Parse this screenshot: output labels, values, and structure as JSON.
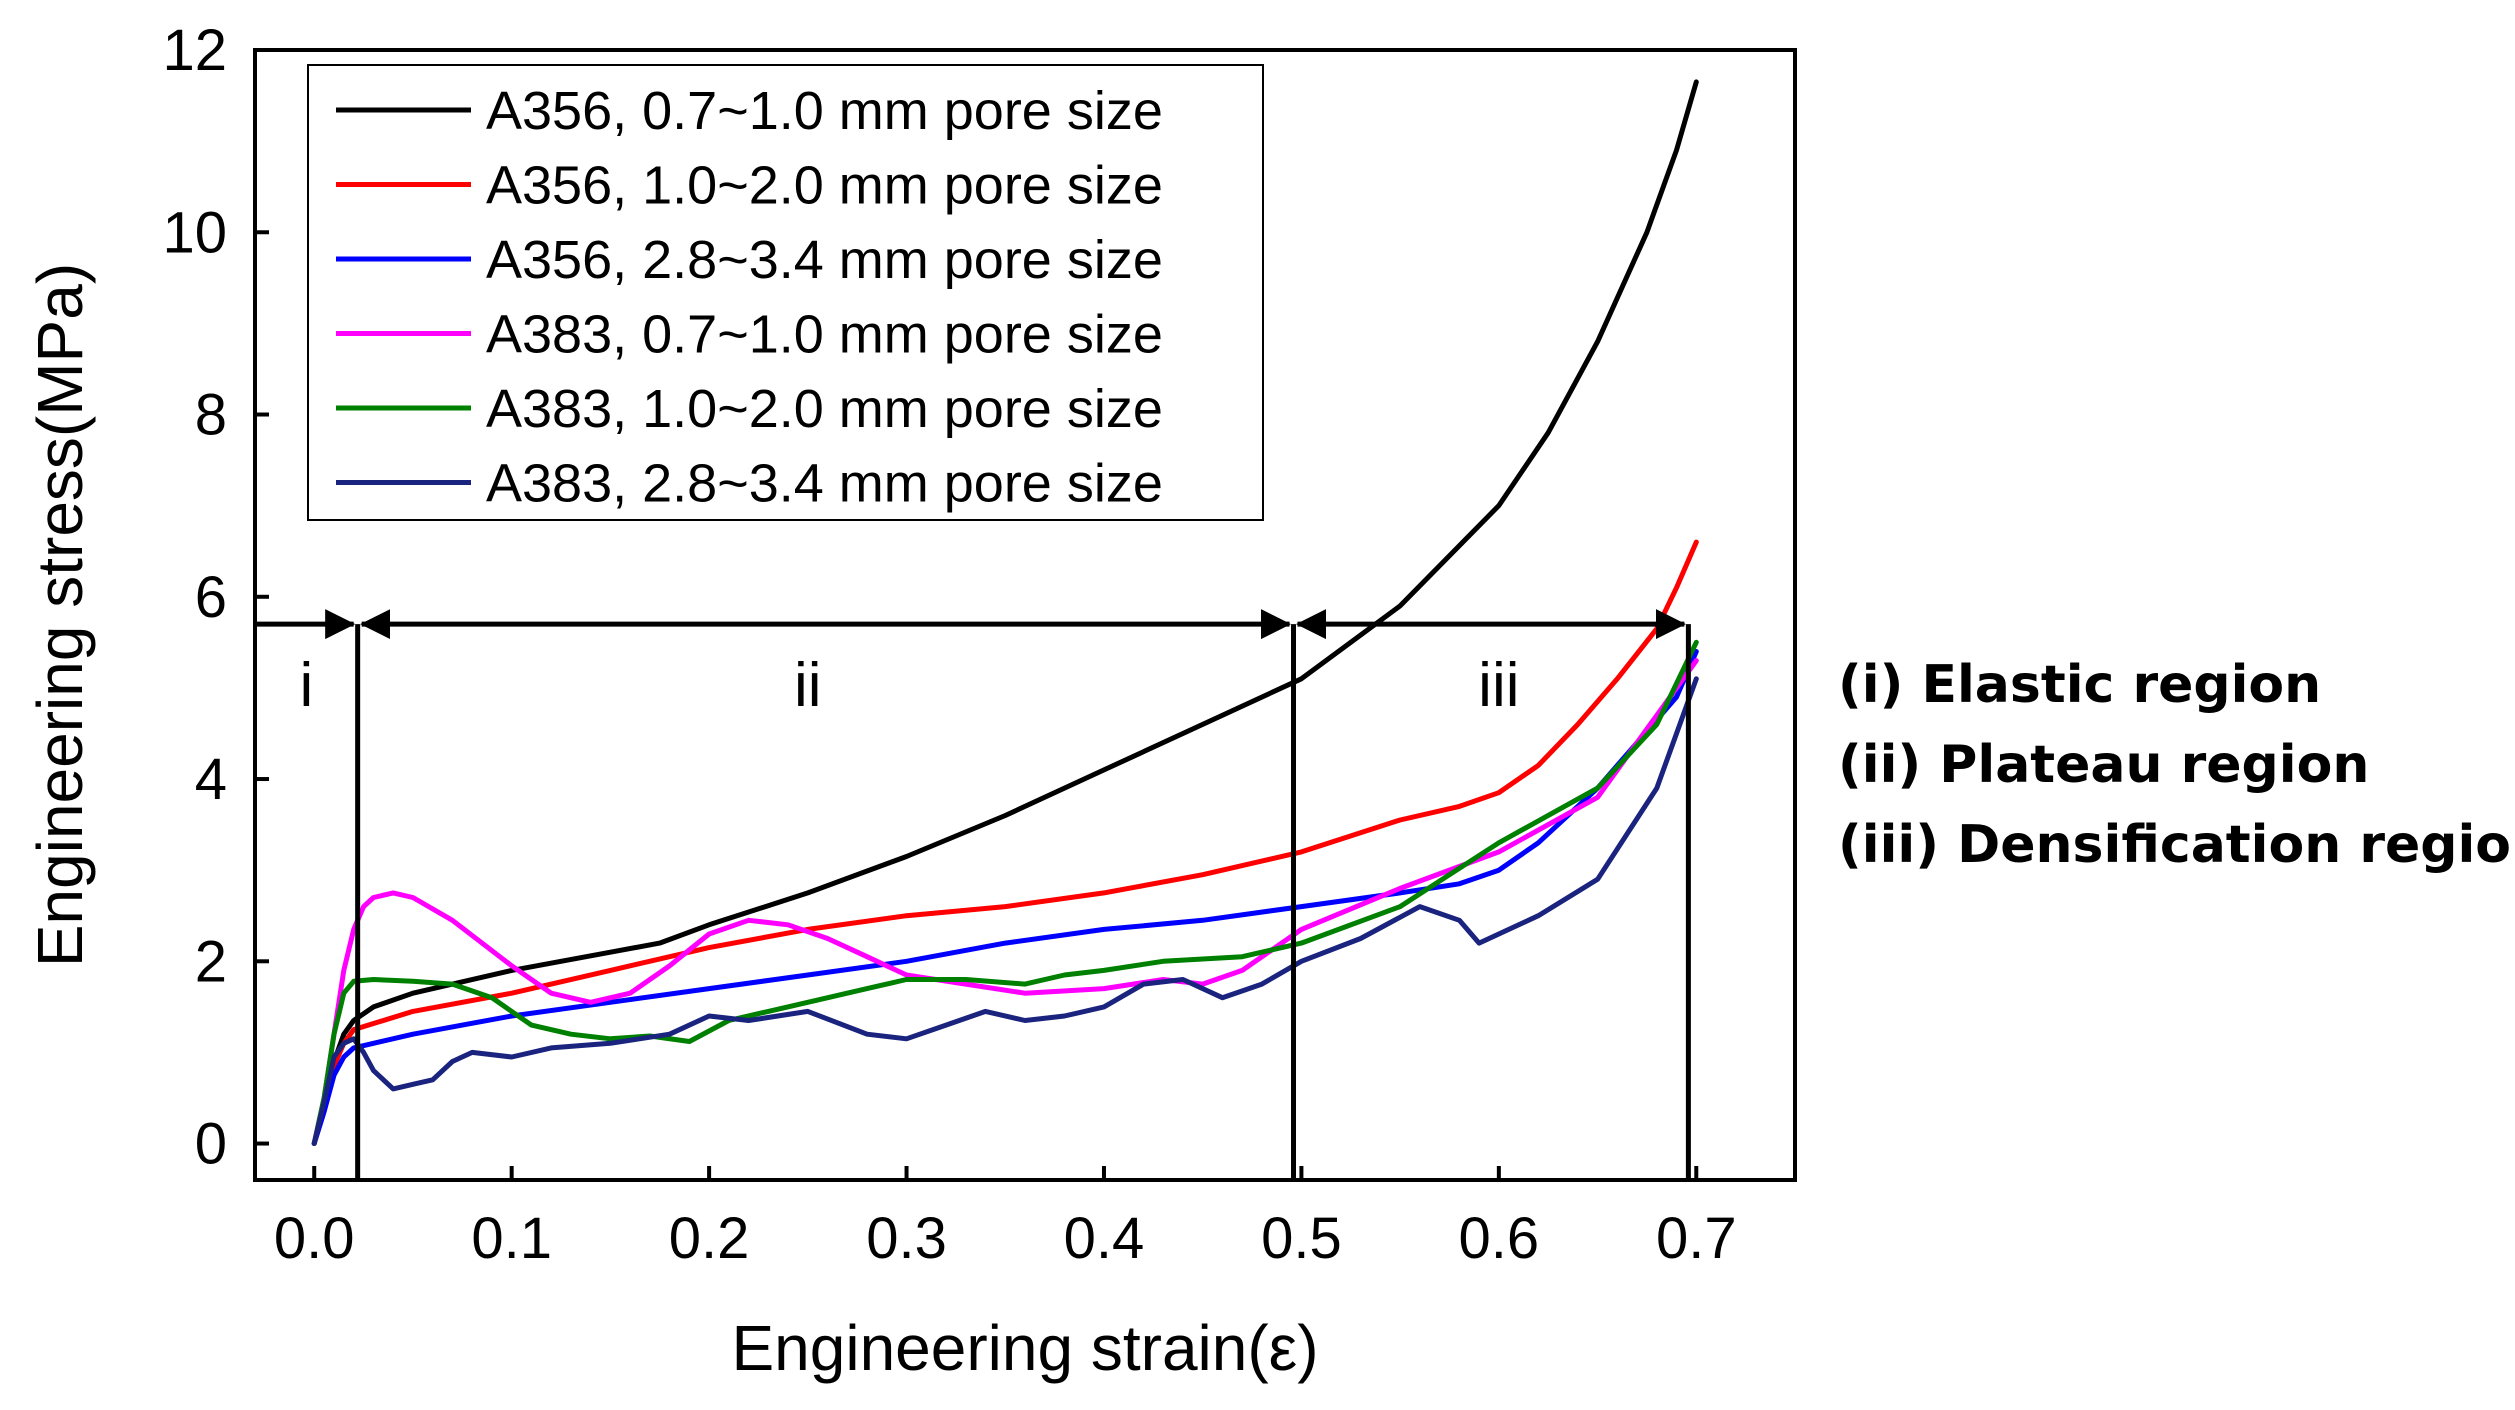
{
  "chart_data": {
    "type": "line",
    "xlabel": "Engineering strain(ε)",
    "ylabel": "Engineering stress(MPa)",
    "xlim": [
      -0.03,
      0.75
    ],
    "ylim": [
      -0.4,
      12
    ],
    "xticks": [
      0.0,
      0.1,
      0.2,
      0.3,
      0.4,
      0.5,
      0.6,
      0.7
    ],
    "xtick_labels": [
      "0.0",
      "0.1",
      "0.2",
      "0.3",
      "0.4",
      "0.5",
      "0.6",
      "0.7"
    ],
    "yticks": [
      0,
      2,
      4,
      6,
      8,
      10,
      12
    ],
    "ytick_labels": [
      "0",
      "2",
      "4",
      "6",
      "8",
      "10",
      "12"
    ],
    "legend_position": "top-left",
    "series": [
      {
        "name": "A356, 0.7~1.0 mm pore size",
        "color": "#000000",
        "x": [
          0,
          0.005,
          0.01,
          0.015,
          0.02,
          0.03,
          0.05,
          0.1,
          0.15,
          0.175,
          0.2,
          0.25,
          0.3,
          0.35,
          0.4,
          0.45,
          0.5,
          0.55,
          0.6,
          0.625,
          0.65,
          0.675,
          0.69,
          0.7
        ],
        "y": [
          0,
          0.4,
          0.9,
          1.2,
          1.35,
          1.5,
          1.65,
          1.9,
          2.1,
          2.2,
          2.4,
          2.75,
          3.15,
          3.6,
          4.1,
          4.6,
          5.1,
          5.9,
          7.0,
          7.8,
          8.8,
          10.0,
          10.9,
          11.65
        ]
      },
      {
        "name": "A356, 1.0~2.0 mm pore size",
        "color": "#ff0000",
        "x": [
          0,
          0.005,
          0.01,
          0.015,
          0.02,
          0.05,
          0.1,
          0.15,
          0.2,
          0.25,
          0.3,
          0.35,
          0.4,
          0.45,
          0.5,
          0.55,
          0.58,
          0.6,
          0.62,
          0.64,
          0.66,
          0.68,
          0.69,
          0.7
        ],
        "y": [
          0,
          0.4,
          0.85,
          1.1,
          1.25,
          1.45,
          1.65,
          1.9,
          2.15,
          2.35,
          2.5,
          2.6,
          2.75,
          2.95,
          3.2,
          3.55,
          3.7,
          3.85,
          4.15,
          4.6,
          5.1,
          5.65,
          6.1,
          6.6
        ]
      },
      {
        "name": "A356, 2.8~3.4 mm pore size",
        "color": "#0000ff",
        "x": [
          0,
          0.005,
          0.01,
          0.015,
          0.02,
          0.05,
          0.1,
          0.15,
          0.2,
          0.25,
          0.3,
          0.35,
          0.4,
          0.45,
          0.5,
          0.55,
          0.58,
          0.6,
          0.62,
          0.65,
          0.67,
          0.69,
          0.7
        ],
        "y": [
          0,
          0.35,
          0.75,
          0.95,
          1.05,
          1.2,
          1.4,
          1.55,
          1.7,
          1.85,
          2.0,
          2.2,
          2.35,
          2.45,
          2.6,
          2.75,
          2.85,
          3.0,
          3.3,
          3.9,
          4.4,
          4.9,
          5.4
        ]
      },
      {
        "name": "A383, 0.7~1.0 mm pore size",
        "color": "#ff00ff",
        "x": [
          0,
          0.005,
          0.01,
          0.015,
          0.02,
          0.025,
          0.03,
          0.04,
          0.05,
          0.07,
          0.1,
          0.12,
          0.14,
          0.16,
          0.18,
          0.2,
          0.22,
          0.24,
          0.26,
          0.28,
          0.3,
          0.33,
          0.36,
          0.4,
          0.43,
          0.45,
          0.47,
          0.5,
          0.55,
          0.6,
          0.65,
          0.7
        ],
        "y": [
          0,
          0.5,
          1.2,
          1.9,
          2.35,
          2.6,
          2.7,
          2.75,
          2.7,
          2.45,
          1.95,
          1.65,
          1.55,
          1.65,
          1.95,
          2.3,
          2.45,
          2.4,
          2.25,
          2.05,
          1.85,
          1.75,
          1.65,
          1.7,
          1.8,
          1.75,
          1.9,
          2.35,
          2.8,
          3.2,
          3.8,
          5.3
        ]
      },
      {
        "name": "A383, 1.0~2.0 mm pore size",
        "color": "#008000",
        "x": [
          0,
          0.005,
          0.01,
          0.015,
          0.02,
          0.03,
          0.05,
          0.07,
          0.09,
          0.11,
          0.13,
          0.15,
          0.17,
          0.19,
          0.21,
          0.23,
          0.25,
          0.28,
          0.3,
          0.33,
          0.36,
          0.38,
          0.4,
          0.43,
          0.47,
          0.5,
          0.55,
          0.6,
          0.65,
          0.68,
          0.7
        ],
        "y": [
          0,
          0.5,
          1.2,
          1.65,
          1.78,
          1.8,
          1.78,
          1.75,
          1.6,
          1.3,
          1.2,
          1.15,
          1.18,
          1.12,
          1.35,
          1.45,
          1.55,
          1.7,
          1.8,
          1.8,
          1.75,
          1.85,
          1.9,
          2.0,
          2.05,
          2.2,
          2.6,
          3.3,
          3.9,
          4.6,
          5.5
        ]
      },
      {
        "name": "A383, 2.8~3.4 mm pore size",
        "color": "#1a237e",
        "x": [
          0,
          0.005,
          0.01,
          0.015,
          0.02,
          0.025,
          0.03,
          0.04,
          0.05,
          0.06,
          0.07,
          0.08,
          0.1,
          0.12,
          0.15,
          0.18,
          0.2,
          0.22,
          0.25,
          0.28,
          0.3,
          0.32,
          0.34,
          0.36,
          0.38,
          0.4,
          0.42,
          0.44,
          0.46,
          0.48,
          0.5,
          0.53,
          0.56,
          0.58,
          0.59,
          0.62,
          0.65,
          0.68,
          0.7
        ],
        "y": [
          0,
          0.45,
          0.95,
          1.1,
          1.15,
          1.0,
          0.8,
          0.6,
          0.65,
          0.7,
          0.9,
          1.0,
          0.95,
          1.05,
          1.1,
          1.2,
          1.4,
          1.35,
          1.45,
          1.2,
          1.15,
          1.3,
          1.45,
          1.35,
          1.4,
          1.5,
          1.75,
          1.8,
          1.6,
          1.75,
          2.0,
          2.25,
          2.6,
          2.45,
          2.2,
          2.5,
          2.9,
          3.9,
          5.1
        ]
      }
    ],
    "region_boundaries": [
      0.022,
      0.496,
      0.696
    ],
    "region_arrow_level": 5.7,
    "region_labels": [
      "i",
      "ii",
      "iii"
    ],
    "region_notes": [
      "(i) Elastic region",
      "(ii) Plateau region",
      "(iii) Densification region"
    ]
  }
}
